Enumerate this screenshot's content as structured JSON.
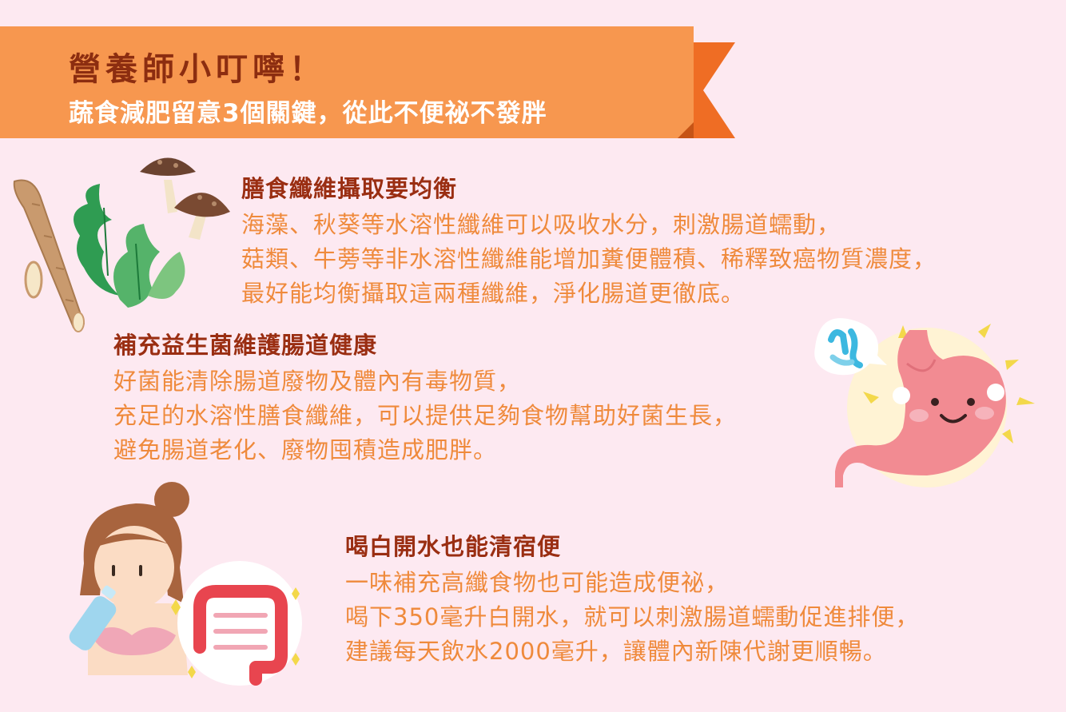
{
  "banner": {
    "title": "營養師小叮嚀！",
    "subtitle": "蔬食減肥留意3個關鍵，從此不便祕不發胖"
  },
  "sections": [
    {
      "title": "膳食纖維攝取要均衡",
      "lines": [
        "海藻、秋葵等水溶性纖維可以吸收水分，刺激腸道蠕動，",
        "菇類、牛蒡等非水溶性纖維能增加糞便體積、稀釋致癌物質濃度，",
        "最好能均衡攝取這兩種纖維，淨化腸道更徹底。"
      ]
    },
    {
      "title": "補充益生菌維護腸道健康",
      "lines": [
        "好菌能清除腸道廢物及體內有毒物質，",
        "充足的水溶性膳食纖維，可以提供足夠食物幫助好菌生長，",
        "避免腸道老化、廢物囤積造成肥胖。"
      ]
    },
    {
      "title": "喝白開水也能清宿便",
      "lines": [
        "一味補充高纖食物也可能造成便祕，",
        "喝下350毫升白開水，就可以刺激腸道蠕動促進排便，",
        "建議每天飲水2000毫升，讓體內新陳代謝更順暢。"
      ]
    }
  ],
  "colors": {
    "background": "#fde9f1",
    "banner_orange": "#f7974f",
    "banner_tail": "#ef6d24",
    "heading": "#9a2e12",
    "body_text": "#ef8a3c"
  },
  "icons": [
    "burdock-icon",
    "mushroom-icon",
    "seaweed-icon",
    "stomach-icon",
    "bacteria-icon",
    "woman-drinking-icon",
    "water-bottle-icon",
    "intestine-icon"
  ]
}
